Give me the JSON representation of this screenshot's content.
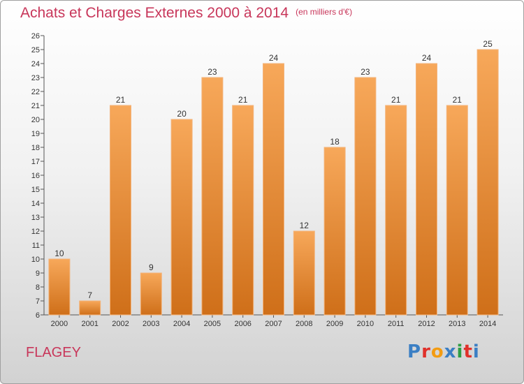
{
  "header": {
    "title": "Achats et Charges Externes 2000 à 2014",
    "subtitle": "(en milliers d'€)"
  },
  "footer": {
    "city": "FLAGEY",
    "brand": "Proxiti"
  },
  "colors": {
    "title": "#c8365a",
    "bar_top": "#f7a85a",
    "bar_bottom": "#cf6f19",
    "logo_letters": [
      "#3b7fc4",
      "#e0312b",
      "#f39c12",
      "#3b7fc4",
      "#2e9e44",
      "#e0312b",
      "#3b7fc4"
    ]
  },
  "chart_data": {
    "type": "bar",
    "categories": [
      "2000",
      "2001",
      "2002",
      "2003",
      "2004",
      "2005",
      "2006",
      "2007",
      "2008",
      "2009",
      "2010",
      "2011",
      "2012",
      "2013",
      "2014"
    ],
    "values": [
      10,
      7,
      21,
      9,
      20,
      23,
      21,
      24,
      12,
      18,
      23,
      21,
      24,
      21,
      25
    ],
    "title": "Achats et Charges Externes 2000 à 2014",
    "ylim": [
      6,
      26
    ],
    "yticks": [
      6,
      7,
      8,
      9,
      10,
      11,
      12,
      13,
      14,
      15,
      16,
      17,
      18,
      19,
      20,
      21,
      22,
      23,
      24,
      25,
      26
    ],
    "grid": false,
    "data_labels": true
  }
}
